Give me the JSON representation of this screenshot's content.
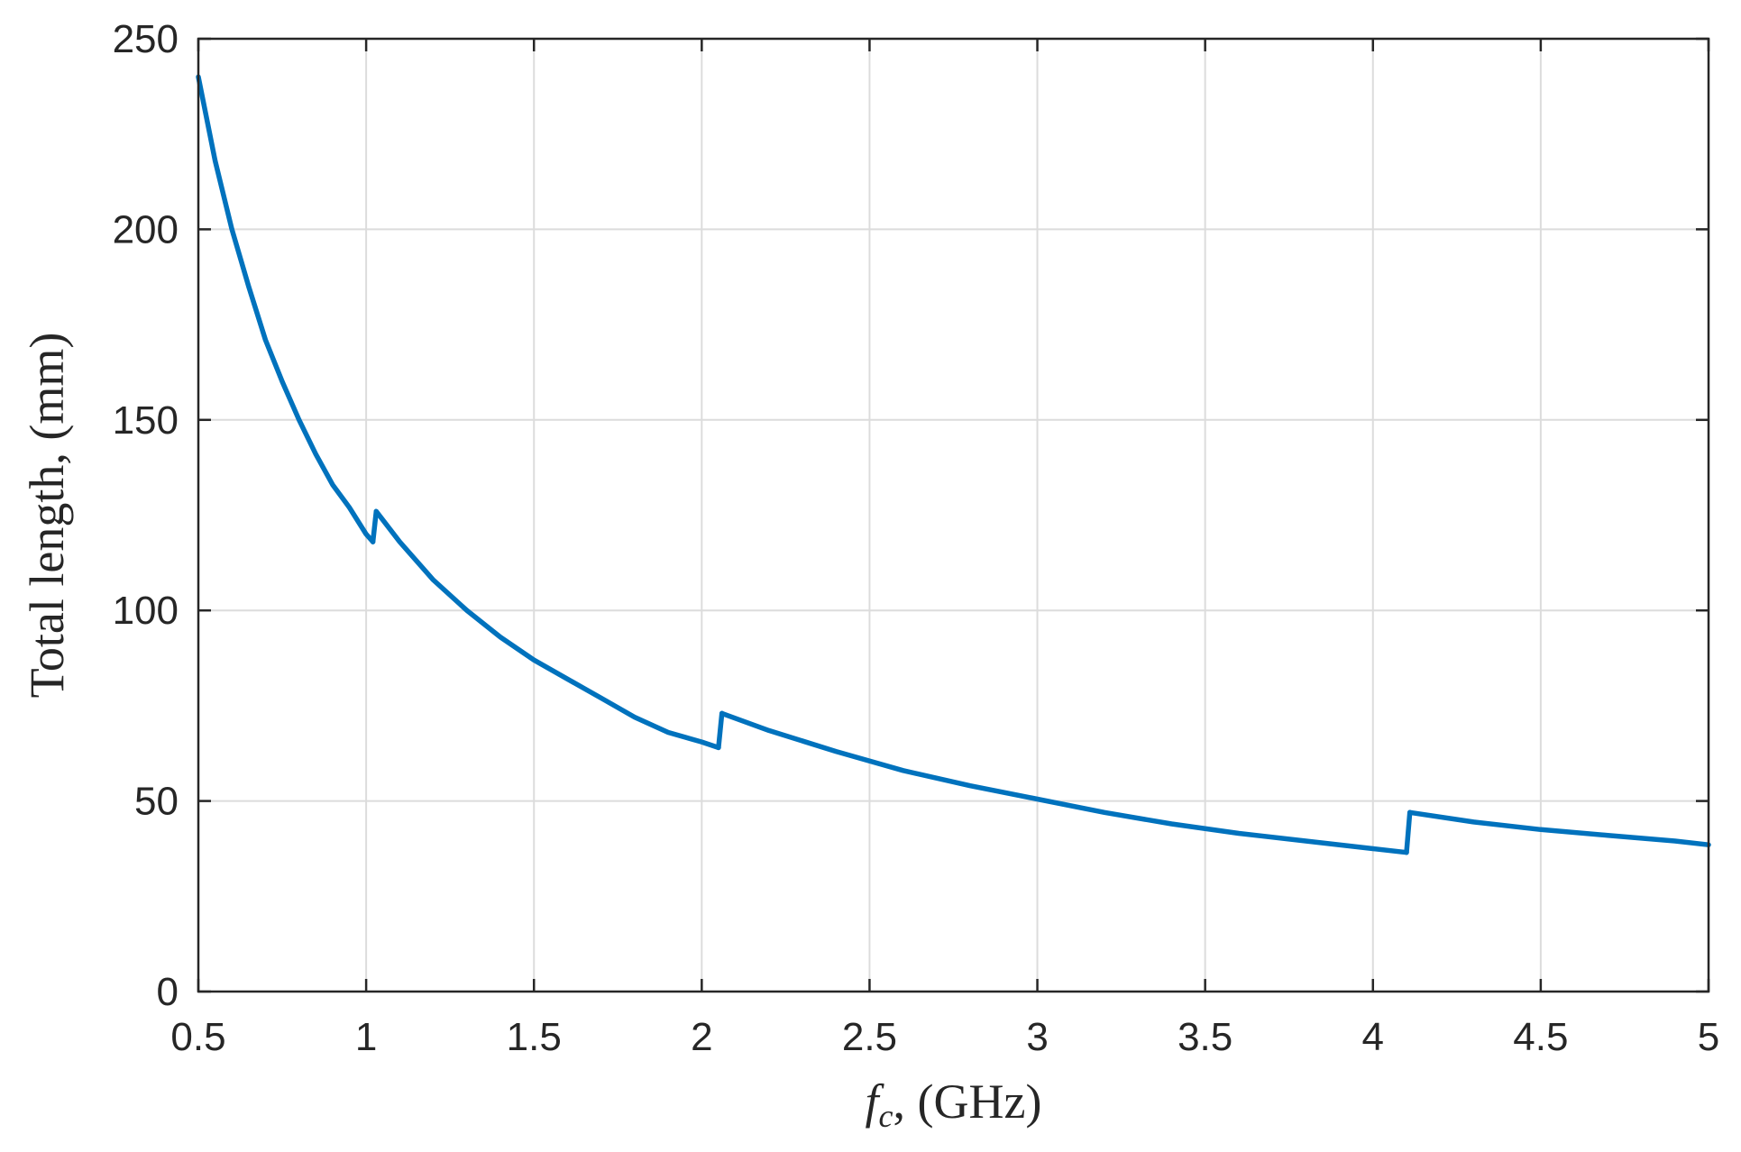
{
  "chart_data": {
    "type": "line",
    "xlabel": "f_c, (GHz)",
    "xlabel_main": "f",
    "xlabel_sub": "c",
    "xlabel_rest": ", (GHz)",
    "ylabel": "Total length, (mm)",
    "xlim": [
      0.5,
      5
    ],
    "ylim": [
      0,
      250
    ],
    "xticks": [
      0.5,
      1,
      1.5,
      2,
      2.5,
      3,
      3.5,
      4,
      4.5,
      5
    ],
    "xtick_labels": [
      "0.5",
      "1",
      "1.5",
      "2",
      "2.5",
      "3",
      "3.5",
      "4",
      "4.5",
      "5"
    ],
    "yticks": [
      0,
      50,
      100,
      150,
      200,
      250
    ],
    "ytick_labels": [
      "0",
      "50",
      "100",
      "150",
      "200",
      "250"
    ],
    "grid": true,
    "series": [
      {
        "color": "#0072BD",
        "segments": [
          {
            "x": [
              0.5,
              0.55,
              0.6,
              0.65,
              0.7,
              0.75,
              0.8,
              0.85,
              0.9,
              0.95,
              1.0,
              1.02
            ],
            "y": [
              240,
              218,
              200,
              185,
              171,
              160,
              150,
              141,
              133,
              127,
              120,
              118
            ]
          },
          {
            "x": [
              1.02,
              1.03
            ],
            "y": [
              118,
              126
            ]
          },
          {
            "x": [
              1.03,
              1.1,
              1.2,
              1.3,
              1.4,
              1.5,
              1.6,
              1.7,
              1.8,
              1.9,
              2.0,
              2.05
            ],
            "y": [
              126,
              118,
              108,
              100,
              93,
              87,
              82,
              77,
              72,
              68,
              65.5,
              64
            ]
          },
          {
            "x": [
              2.05,
              2.06
            ],
            "y": [
              64,
              73
            ]
          },
          {
            "x": [
              2.06,
              2.2,
              2.4,
              2.6,
              2.8,
              3.0,
              3.2,
              3.4,
              3.6,
              3.8,
              4.0,
              4.1
            ],
            "y": [
              73,
              68.5,
              63,
              58,
              54,
              50.5,
              47,
              44,
              41.5,
              39.5,
              37.5,
              36.5
            ]
          },
          {
            "x": [
              4.1,
              4.11
            ],
            "y": [
              36.5,
              47
            ]
          },
          {
            "x": [
              4.11,
              4.3,
              4.5,
              4.7,
              4.9,
              5.0
            ],
            "y": [
              47,
              44.5,
              42.5,
              41,
              39.5,
              38.5
            ]
          }
        ]
      }
    ]
  }
}
